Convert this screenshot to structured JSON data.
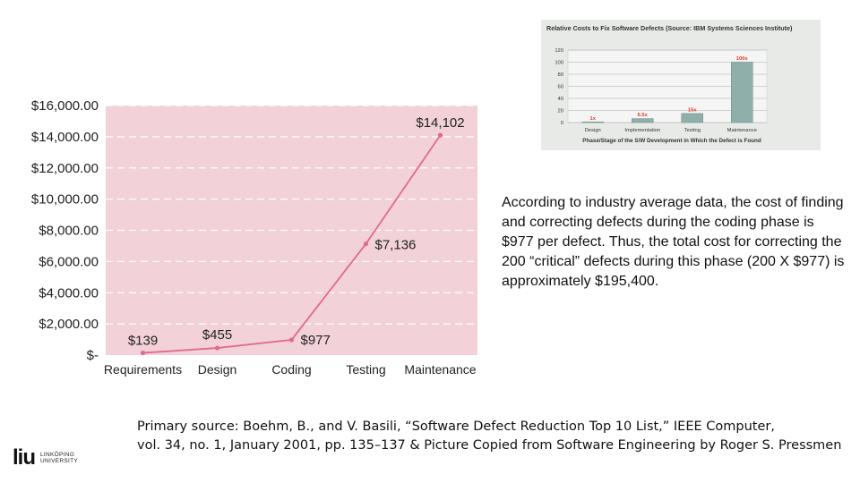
{
  "chart_data": [
    {
      "type": "line",
      "categories": [
        "Requirements",
        "Design",
        "Coding",
        "Testing",
        "Maintenance"
      ],
      "values": [
        139,
        455,
        977,
        7136,
        14102
      ],
      "data_labels": [
        "$139",
        "$455",
        "$977",
        "$7,136",
        "$14,102"
      ],
      "y_tick_labels": [
        "$-",
        "$2,000.00",
        "$4,000.00",
        "$6,000.00",
        "$8,000.00",
        "$10,000.00",
        "$12,000.00",
        "$14,000.00",
        "$16,000.00"
      ],
      "y_ticks": [
        0,
        2000,
        4000,
        6000,
        8000,
        10000,
        12000,
        14000,
        16000
      ],
      "ylim": [
        0,
        16000
      ],
      "grid": true,
      "colors": {
        "plot_background": "#f2d1d9",
        "line": "#e06a92",
        "gridline": "#ffffff"
      }
    },
    {
      "type": "bar",
      "title": "Relative Costs to Fix Software Defects (Source: IBM Systems Sciences Institute)",
      "categories": [
        "Design",
        "Implementation",
        "Testing",
        "Maintenance"
      ],
      "values": [
        1,
        6.5,
        15,
        100
      ],
      "data_labels": [
        "1x",
        "6.5x",
        "15x",
        "100x"
      ],
      "y_ticks": [
        0,
        20,
        40,
        60,
        80,
        100,
        120
      ],
      "ylim": [
        0,
        120
      ],
      "xlabel": "Phase/Stage of the S/W Development in Which the Defect is Found",
      "grid": true,
      "colors": {
        "bar": "#8fb0aa",
        "label": "#e03a2f",
        "background": "#e8eae8"
      }
    }
  ],
  "description": "According to industry average data, the cost of finding and correcting defects during the coding phase is $977 per defect. Thus, the total cost for correcting the 200 “critical” defects during this phase (200 X $977) is approximately $195,400.",
  "source_line1": "Primary source: Boehm, B., and V. Basili, “Software Defect Reduction Top 10 List,” IEEE Computer,",
  "source_line2": "vol. 34, no. 1, January 2001, pp. 135–137 & Picture Copied from Software Engineering by Roger S. Pressmen",
  "logo": {
    "mark": "liu",
    "line1": "LINKÖPING",
    "line2": "UNIVERSITY"
  }
}
